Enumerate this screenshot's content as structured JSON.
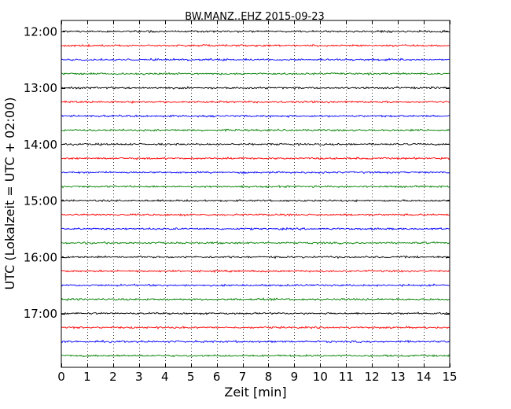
{
  "chart_data": {
    "type": "line",
    "title": "BW.MANZ..EHZ 2015-09-23",
    "xlabel": "Zeit  [min]",
    "ylabel": "UTC (Lokalzeit = UTC + 02:00)",
    "xlim": [
      0,
      15
    ],
    "xticks": [
      "0",
      "1",
      "2",
      "3",
      "4",
      "5",
      "6",
      "7",
      "8",
      "9",
      "10",
      "11",
      "12",
      "13",
      "14",
      "15"
    ],
    "yticks": [
      {
        "label": "12:00",
        "start": "12:00"
      },
      {
        "label": "13:00",
        "start": "13:00"
      },
      {
        "label": "14:00",
        "start": "14:00"
      },
      {
        "label": "15:00",
        "start": "15:00"
      },
      {
        "label": "16:00",
        "start": "16:00"
      },
      {
        "label": "17:00",
        "start": "17:00"
      }
    ],
    "grid": {
      "x": true,
      "y": false,
      "style": "dotted"
    },
    "trace_minutes": 15,
    "trace_colors": [
      "#000000",
      "#ff0000",
      "#0000ff",
      "#008000"
    ],
    "traces": [
      {
        "start": "12:00",
        "color": "#000000"
      },
      {
        "start": "12:15",
        "color": "#ff0000"
      },
      {
        "start": "12:30",
        "color": "#0000ff"
      },
      {
        "start": "12:45",
        "color": "#008000"
      },
      {
        "start": "13:00",
        "color": "#000000"
      },
      {
        "start": "13:15",
        "color": "#ff0000"
      },
      {
        "start": "13:30",
        "color": "#0000ff"
      },
      {
        "start": "13:45",
        "color": "#008000"
      },
      {
        "start": "14:00",
        "color": "#000000"
      },
      {
        "start": "14:15",
        "color": "#ff0000"
      },
      {
        "start": "14:30",
        "color": "#0000ff"
      },
      {
        "start": "14:45",
        "color": "#008000"
      },
      {
        "start": "15:00",
        "color": "#000000"
      },
      {
        "start": "15:15",
        "color": "#ff0000"
      },
      {
        "start": "15:30",
        "color": "#0000ff"
      },
      {
        "start": "15:45",
        "color": "#008000"
      },
      {
        "start": "16:00",
        "color": "#000000"
      },
      {
        "start": "16:15",
        "color": "#ff0000"
      },
      {
        "start": "16:30",
        "color": "#0000ff"
      },
      {
        "start": "16:45",
        "color": "#008000"
      },
      {
        "start": "17:00",
        "color": "#000000"
      },
      {
        "start": "17:15",
        "color": "#ff0000"
      },
      {
        "start": "17:30",
        "color": "#0000ff"
      },
      {
        "start": "17:45",
        "color": "#008000"
      }
    ]
  }
}
